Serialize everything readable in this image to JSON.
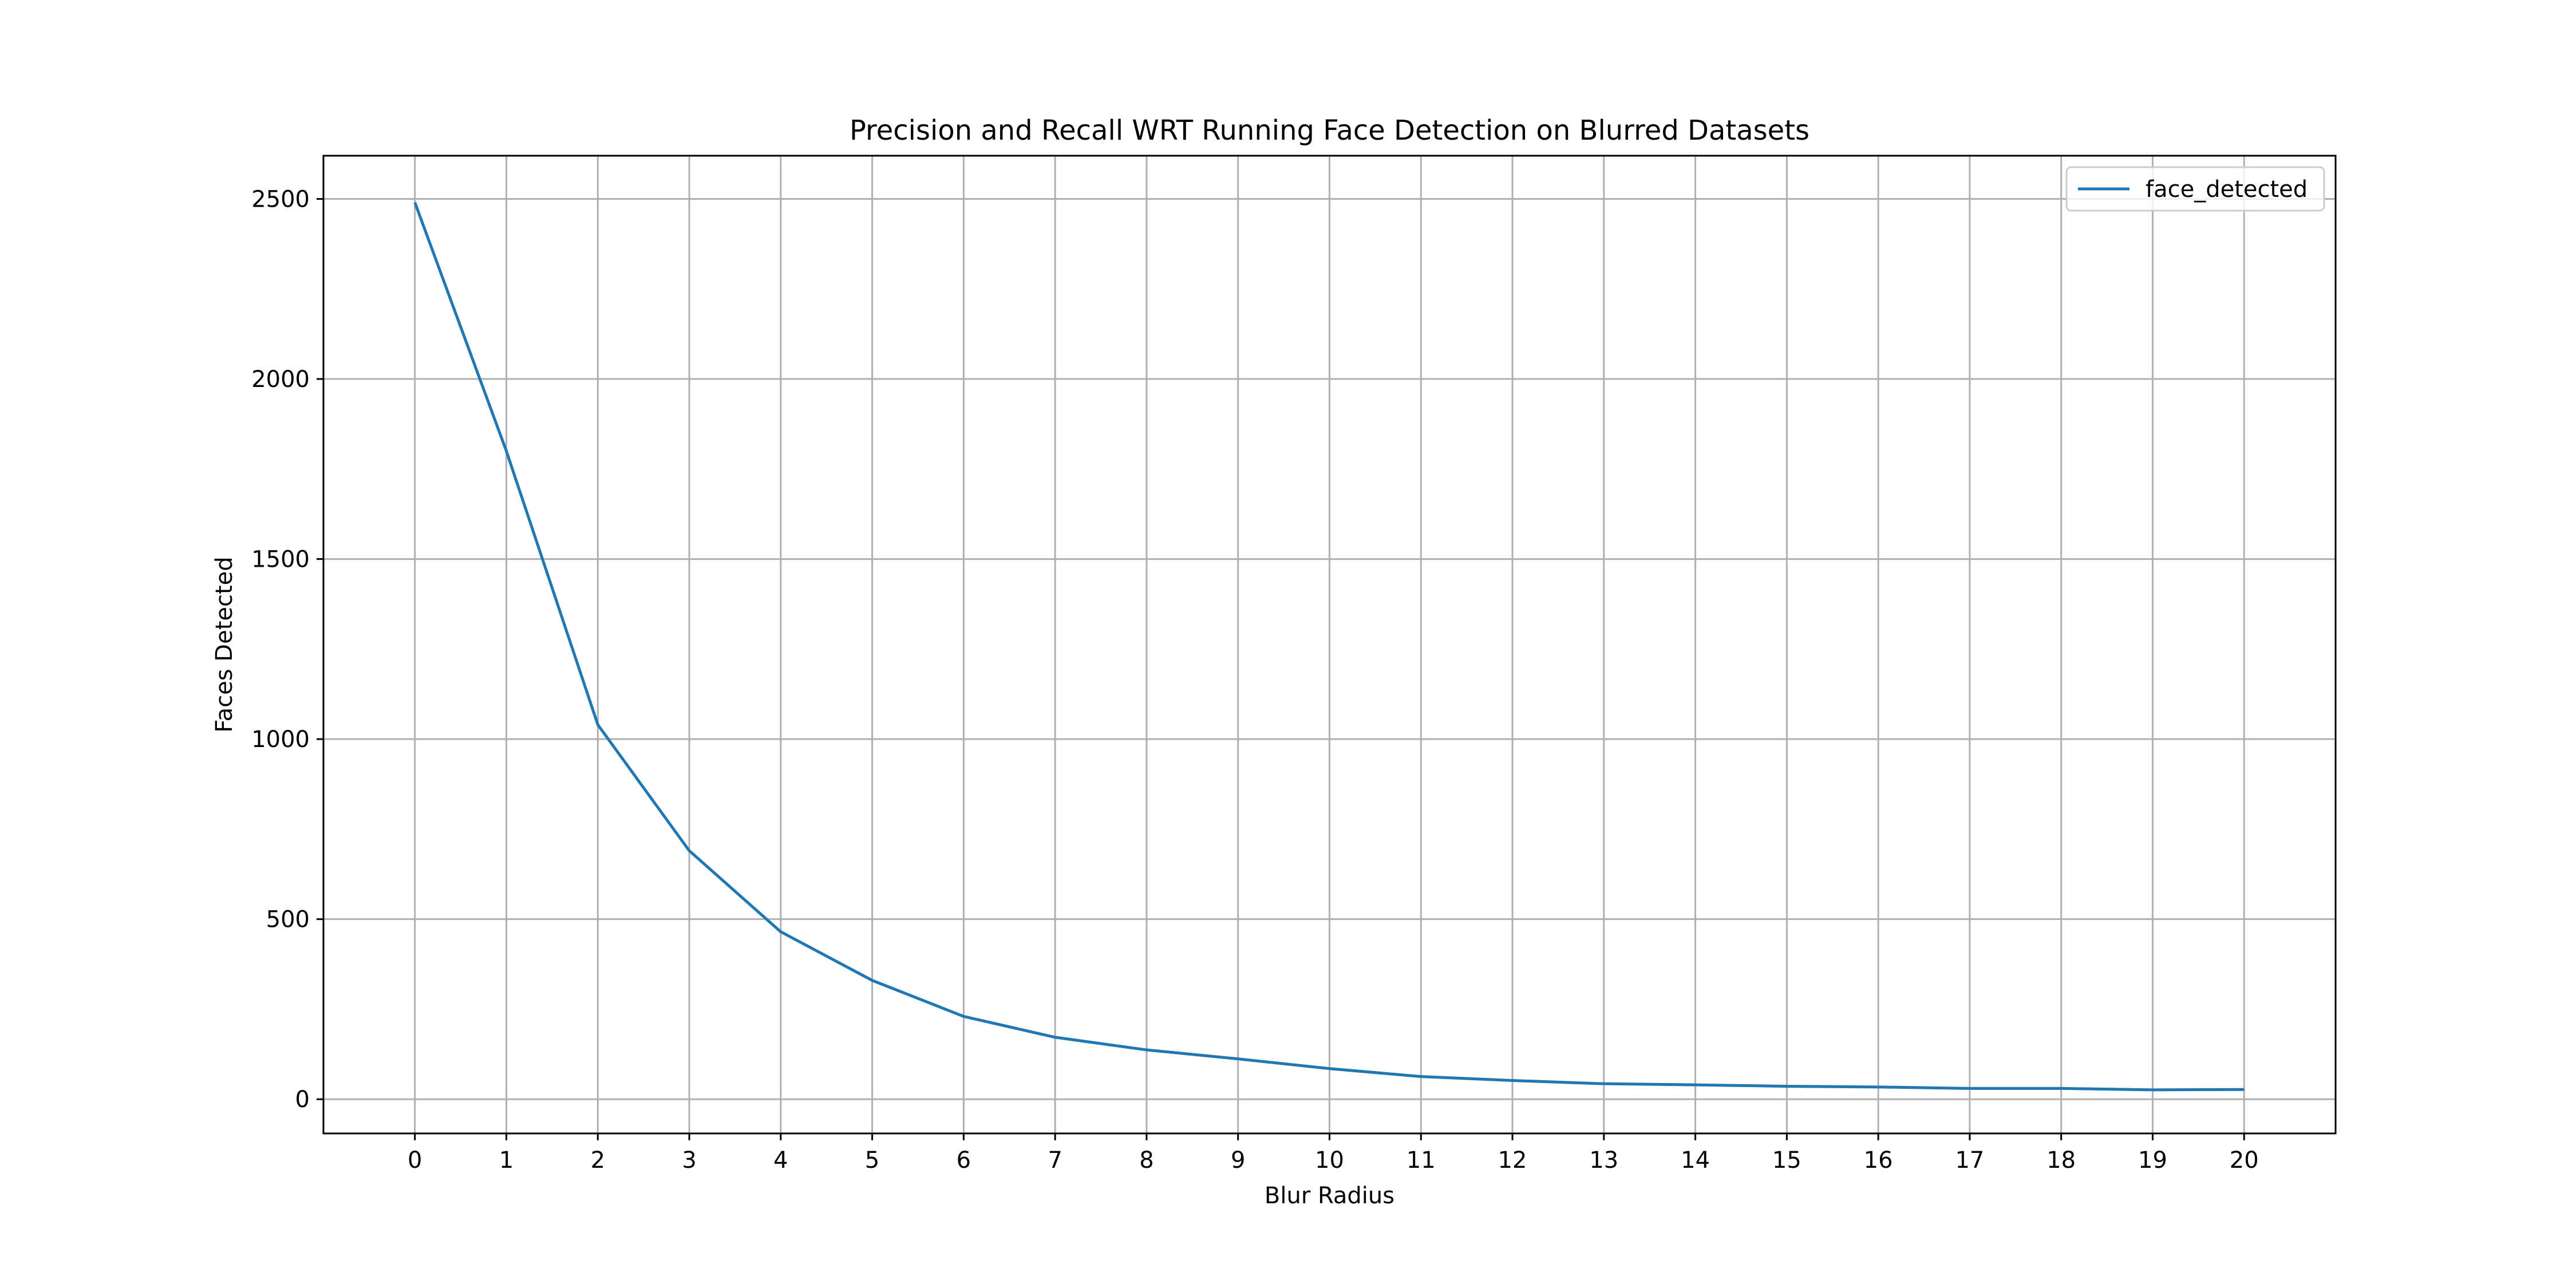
{
  "chart_data": {
    "type": "line",
    "title": "Precision and Recall WRT Running Face Detection on Blurred Datasets",
    "xlabel": "Blur Radius",
    "ylabel": "Faces Detected",
    "x": [
      0,
      1,
      2,
      3,
      4,
      5,
      6,
      7,
      8,
      9,
      10,
      11,
      12,
      13,
      14,
      15,
      16,
      17,
      18,
      19,
      20
    ],
    "xlim": [
      -1,
      21
    ],
    "ylim": [
      -95,
      2620
    ],
    "x_ticks": [
      "0",
      "1",
      "2",
      "3",
      "4",
      "5",
      "6",
      "7",
      "8",
      "9",
      "10",
      "11",
      "12",
      "13",
      "14",
      "15",
      "16",
      "17",
      "18",
      "19",
      "20"
    ],
    "y_ticks": [
      0,
      500,
      1000,
      1500,
      2000,
      2500
    ],
    "y_tick_labels": [
      "0",
      "500",
      "1000",
      "1500",
      "2000",
      "2500"
    ],
    "grid": true,
    "legend_position": "top-right",
    "series": [
      {
        "name": "face_detected",
        "color": "#1f77b4",
        "values": [
          2490,
          1800,
          1040,
          690,
          465,
          330,
          230,
          172,
          137,
          112,
          85,
          63,
          52,
          43,
          40,
          36,
          34,
          30,
          30,
          26,
          27
        ]
      }
    ]
  }
}
